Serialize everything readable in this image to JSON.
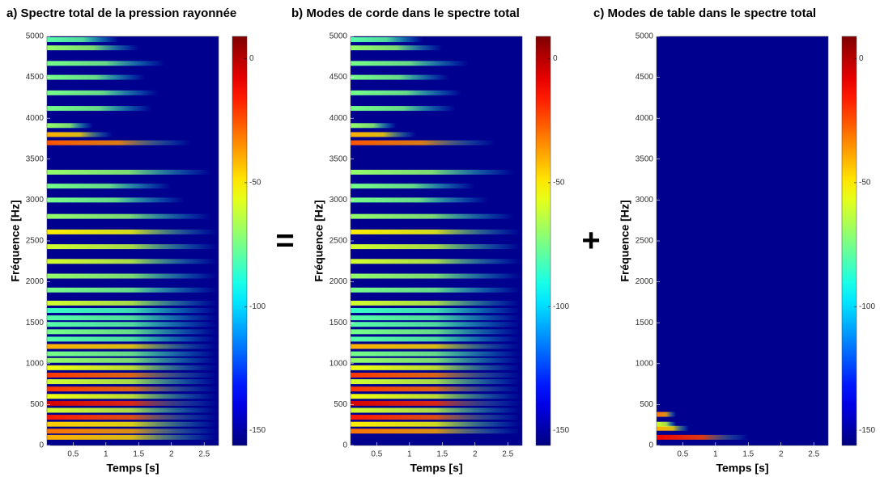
{
  "chart_data": [
    {
      "type": "spectrogram",
      "title": "a) Spectre total de la pression rayonnée",
      "x_label": "Temps [s]",
      "y_label": "Fréquence [Hz]",
      "xlim": [
        0.1,
        2.72
      ],
      "xticks": [
        0.5,
        1,
        1.5,
        2,
        2.5
      ],
      "ylim": [
        0,
        5000
      ],
      "yticks": [
        0,
        500,
        1000,
        1500,
        2000,
        2500,
        3000,
        3500,
        4000,
        4500,
        5000
      ],
      "clim": [
        -156,
        9
      ],
      "cticks": [
        0,
        -50,
        -100,
        -150
      ],
      "partials": {
        "frequency": [
          100,
          175,
          260,
          345,
          430,
          515,
          600,
          690,
          780,
          860,
          950,
          1040,
          1120,
          1210,
          1300,
          1390,
          1480,
          1560,
          1650,
          1740,
          1900,
          2070,
          2250,
          2430,
          2610,
          2800,
          3000,
          3170,
          3340,
          3700,
          3800,
          3910,
          4120,
          4310,
          4500,
          4670,
          4860,
          4960
        ],
        "level": [
          -40,
          -30,
          -45,
          -15,
          -60,
          -5,
          -55,
          -20,
          -60,
          -20,
          -55,
          -70,
          -75,
          -40,
          -80,
          -75,
          -80,
          -80,
          -85,
          -60,
          -75,
          -70,
          -60,
          -60,
          -50,
          -70,
          -75,
          -75,
          -70,
          -25,
          -40,
          -70,
          -75,
          -75,
          -75,
          -75,
          -70,
          -80
        ],
        "duration": [
          2.7,
          2.7,
          2.7,
          2.7,
          2.7,
          2.7,
          2.7,
          2.7,
          2.7,
          2.7,
          2.7,
          2.7,
          2.7,
          2.7,
          2.7,
          2.7,
          2.7,
          2.7,
          2.7,
          2.7,
          2.7,
          2.7,
          2.7,
          2.7,
          2.7,
          2.6,
          2.2,
          2.0,
          2.6,
          2.3,
          1.1,
          0.8,
          1.7,
          1.8,
          1.6,
          1.9,
          1.5,
          1.2
        ]
      }
    },
    {
      "type": "spectrogram",
      "title": "b) Modes de corde  dans le spectre total",
      "x_label": "Temps [s]",
      "y_label": "Fréquence [Hz]",
      "xlim": [
        0.1,
        2.72
      ],
      "xticks": [
        0.5,
        1,
        1.5,
        2,
        2.5
      ],
      "ylim": [
        0,
        5000
      ],
      "yticks": [
        0,
        500,
        1000,
        1500,
        2000,
        2500,
        3000,
        3500,
        4000,
        4500,
        5000
      ],
      "clim": [
        -156,
        9
      ],
      "cticks": [
        0,
        -50,
        -100,
        -150
      ],
      "partials": {
        "frequency": [
          175,
          260,
          345,
          430,
          515,
          600,
          690,
          780,
          860,
          950,
          1040,
          1120,
          1210,
          1300,
          1390,
          1480,
          1560,
          1650,
          1740,
          1900,
          2070,
          2250,
          2430,
          2610,
          2800,
          3000,
          3170,
          3340,
          3700,
          3800,
          3910,
          4120,
          4310,
          4500,
          4670,
          4860,
          4960
        ],
        "level": [
          -30,
          -50,
          -15,
          -60,
          -5,
          -55,
          -20,
          -60,
          -20,
          -55,
          -70,
          -75,
          -40,
          -80,
          -75,
          -80,
          -80,
          -85,
          -60,
          -75,
          -70,
          -60,
          -60,
          -50,
          -70,
          -75,
          -75,
          -70,
          -25,
          -40,
          -70,
          -75,
          -75,
          -75,
          -75,
          -70,
          -80
        ],
        "duration": [
          2.7,
          2.7,
          2.7,
          2.7,
          2.7,
          2.7,
          2.7,
          2.7,
          2.7,
          2.7,
          2.7,
          2.7,
          2.7,
          2.7,
          2.7,
          2.7,
          2.7,
          2.7,
          2.7,
          2.7,
          2.7,
          2.7,
          2.7,
          2.7,
          2.6,
          2.2,
          2.0,
          2.6,
          2.3,
          1.1,
          0.8,
          1.7,
          1.8,
          1.6,
          1.9,
          1.5,
          1.2
        ]
      }
    },
    {
      "type": "spectrogram",
      "title": "c) Modes de table dans le spectre total",
      "x_label": "Temps [s]",
      "y_label": "Fréquence [Hz]",
      "xlim": [
        0.1,
        2.72
      ],
      "xticks": [
        0.5,
        1,
        1.5,
        2,
        2.5
      ],
      "ylim": [
        0,
        5000
      ],
      "yticks": [
        0,
        500,
        1000,
        1500,
        2000,
        2500,
        3000,
        3500,
        4000,
        4500,
        5000
      ],
      "clim": [
        -156,
        9
      ],
      "cticks": [
        0,
        -50,
        -100,
        -150
      ],
      "partials": {
        "frequency": [
          100,
          210,
          260,
          380
        ],
        "level": [
          -10,
          -40,
          -60,
          -30
        ],
        "duration": [
          1.5,
          0.6,
          0.4,
          0.4
        ]
      }
    }
  ],
  "operators": [
    "=",
    "+"
  ]
}
